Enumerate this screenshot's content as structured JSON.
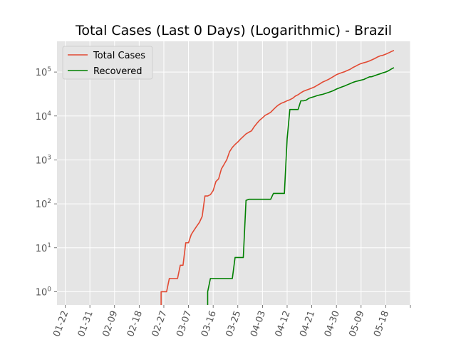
{
  "chart_data": {
    "type": "line",
    "title": "Total Cases (Last 0 Days) (Logarithmic) - Brazil",
    "xlabel": "",
    "ylabel": "",
    "y_scale": "log",
    "ylim": [
      0.5,
      500000
    ],
    "xlim": [
      "2020-01-19",
      "2020-05-27"
    ],
    "grid": true,
    "background": "#e5e5e5",
    "legend": "upper-left",
    "x_ticks": [
      {
        "date": "2020-01-22",
        "label": "01-22"
      },
      {
        "date": "2020-01-31",
        "label": "01-31"
      },
      {
        "date": "2020-02-09",
        "label": "02-09"
      },
      {
        "date": "2020-02-18",
        "label": "02-18"
      },
      {
        "date": "2020-02-27",
        "label": "02-27"
      },
      {
        "date": "2020-03-07",
        "label": "03-07"
      },
      {
        "date": "2020-03-16",
        "label": "03-16"
      },
      {
        "date": "2020-03-25",
        "label": "03-25"
      },
      {
        "date": "2020-04-03",
        "label": "04-03"
      },
      {
        "date": "2020-04-12",
        "label": "04-12"
      },
      {
        "date": "2020-04-21",
        "label": "04-21"
      },
      {
        "date": "2020-04-30",
        "label": "04-30"
      },
      {
        "date": "2020-05-09",
        "label": "05-09"
      },
      {
        "date": "2020-05-18",
        "label": "05-18"
      },
      {
        "date": "2020-05-27",
        "label": ""
      }
    ],
    "y_ticks": [
      {
        "value": 1,
        "base": "10",
        "exp": "0"
      },
      {
        "value": 10,
        "base": "10",
        "exp": "1"
      },
      {
        "value": 100,
        "base": "10",
        "exp": "2"
      },
      {
        "value": 1000,
        "base": "10",
        "exp": "3"
      },
      {
        "value": 10000,
        "base": "10",
        "exp": "4"
      },
      {
        "value": 100000,
        "base": "10",
        "exp": "5"
      }
    ],
    "series": [
      {
        "name": "Total Cases",
        "color": "#e24a33",
        "points": [
          [
            "2020-02-26",
            1
          ],
          [
            "2020-02-27",
            1
          ],
          [
            "2020-02-28",
            1
          ],
          [
            "2020-02-29",
            2
          ],
          [
            "2020-03-01",
            2
          ],
          [
            "2020-03-02",
            2
          ],
          [
            "2020-03-03",
            2
          ],
          [
            "2020-03-04",
            4
          ],
          [
            "2020-03-05",
            4
          ],
          [
            "2020-03-06",
            13
          ],
          [
            "2020-03-07",
            13
          ],
          [
            "2020-03-08",
            20
          ],
          [
            "2020-03-09",
            25
          ],
          [
            "2020-03-10",
            31
          ],
          [
            "2020-03-11",
            38
          ],
          [
            "2020-03-12",
            52
          ],
          [
            "2020-03-13",
            151
          ],
          [
            "2020-03-14",
            151
          ],
          [
            "2020-03-15",
            162
          ],
          [
            "2020-03-16",
            200
          ],
          [
            "2020-03-17",
            321
          ],
          [
            "2020-03-18",
            372
          ],
          [
            "2020-03-19",
            621
          ],
          [
            "2020-03-20",
            793
          ],
          [
            "2020-03-21",
            1021
          ],
          [
            "2020-03-22",
            1546
          ],
          [
            "2020-03-23",
            1924
          ],
          [
            "2020-03-24",
            2247
          ],
          [
            "2020-03-25",
            2554
          ],
          [
            "2020-03-26",
            2985
          ],
          [
            "2020-03-27",
            3417
          ],
          [
            "2020-03-28",
            3904
          ],
          [
            "2020-03-29",
            4256
          ],
          [
            "2020-03-30",
            4579
          ],
          [
            "2020-03-31",
            5717
          ],
          [
            "2020-04-01",
            6836
          ],
          [
            "2020-04-02",
            8044
          ],
          [
            "2020-04-03",
            9056
          ],
          [
            "2020-04-04",
            10360
          ],
          [
            "2020-04-05",
            11130
          ],
          [
            "2020-04-06",
            12161
          ],
          [
            "2020-04-07",
            14034
          ],
          [
            "2020-04-08",
            16170
          ],
          [
            "2020-04-09",
            18092
          ],
          [
            "2020-04-10",
            19638
          ],
          [
            "2020-04-11",
            20727
          ],
          [
            "2020-04-12",
            22192
          ],
          [
            "2020-04-13",
            23430
          ],
          [
            "2020-04-14",
            25262
          ],
          [
            "2020-04-15",
            28320
          ],
          [
            "2020-04-16",
            30425
          ],
          [
            "2020-04-17",
            33682
          ],
          [
            "2020-04-18",
            36658
          ],
          [
            "2020-04-19",
            38654
          ],
          [
            "2020-04-20",
            40743
          ],
          [
            "2020-04-21",
            43079
          ],
          [
            "2020-04-22",
            45757
          ],
          [
            "2020-04-23",
            50036
          ],
          [
            "2020-04-24",
            54043
          ],
          [
            "2020-04-25",
            59324
          ],
          [
            "2020-04-26",
            63100
          ],
          [
            "2020-04-27",
            67446
          ],
          [
            "2020-04-28",
            73235
          ],
          [
            "2020-04-29",
            79685
          ],
          [
            "2020-04-30",
            87187
          ],
          [
            "2020-05-01",
            92202
          ],
          [
            "2020-05-02",
            97100
          ],
          [
            "2020-05-03",
            101826
          ],
          [
            "2020-05-04",
            108620
          ],
          [
            "2020-05-05",
            115455
          ],
          [
            "2020-05-06",
            126611
          ],
          [
            "2020-05-07",
            135773
          ],
          [
            "2020-05-08",
            146894
          ],
          [
            "2020-05-09",
            156061
          ],
          [
            "2020-05-10",
            162699
          ],
          [
            "2020-05-11",
            169594
          ],
          [
            "2020-05-12",
            178214
          ],
          [
            "2020-05-13",
            190137
          ],
          [
            "2020-05-14",
            203165
          ],
          [
            "2020-05-15",
            220291
          ],
          [
            "2020-05-16",
            233511
          ],
          [
            "2020-05-17",
            241080
          ],
          [
            "2020-05-18",
            255368
          ],
          [
            "2020-05-19",
            271885
          ],
          [
            "2020-05-20",
            291579
          ],
          [
            "2020-05-21",
            310087
          ]
        ]
      },
      {
        "name": "Recovered",
        "color": "#008000",
        "points": [
          [
            "2020-03-14",
            1
          ],
          [
            "2020-03-15",
            2
          ],
          [
            "2020-03-16",
            2
          ],
          [
            "2020-03-17",
            2
          ],
          [
            "2020-03-18",
            2
          ],
          [
            "2020-03-19",
            2
          ],
          [
            "2020-03-20",
            2
          ],
          [
            "2020-03-21",
            2
          ],
          [
            "2020-03-22",
            2
          ],
          [
            "2020-03-23",
            2
          ],
          [
            "2020-03-24",
            6
          ],
          [
            "2020-03-25",
            6
          ],
          [
            "2020-03-26",
            6
          ],
          [
            "2020-03-27",
            6
          ],
          [
            "2020-03-28",
            120
          ],
          [
            "2020-03-29",
            127
          ],
          [
            "2020-03-30",
            127
          ],
          [
            "2020-03-31",
            127
          ],
          [
            "2020-04-01",
            127
          ],
          [
            "2020-04-02",
            127
          ],
          [
            "2020-04-03",
            127
          ],
          [
            "2020-04-04",
            127
          ],
          [
            "2020-04-05",
            127
          ],
          [
            "2020-04-06",
            127
          ],
          [
            "2020-04-07",
            173
          ],
          [
            "2020-04-08",
            173
          ],
          [
            "2020-04-09",
            173
          ],
          [
            "2020-04-10",
            173
          ],
          [
            "2020-04-11",
            173
          ],
          [
            "2020-04-12",
            3000
          ],
          [
            "2020-04-13",
            14026
          ],
          [
            "2020-04-14",
            14026
          ],
          [
            "2020-04-15",
            14026
          ],
          [
            "2020-04-16",
            14026
          ],
          [
            "2020-04-17",
            22130
          ],
          [
            "2020-04-18",
            22130
          ],
          [
            "2020-04-19",
            22991
          ],
          [
            "2020-04-20",
            25318
          ],
          [
            "2020-04-21",
            26573
          ],
          [
            "2020-04-22",
            27655
          ],
          [
            "2020-04-23",
            29160
          ],
          [
            "2020-04-24",
            30152
          ],
          [
            "2020-04-25",
            31142
          ],
          [
            "2020-04-26",
            32544
          ],
          [
            "2020-04-27",
            34132
          ],
          [
            "2020-04-28",
            35935
          ],
          [
            "2020-04-29",
            38039
          ],
          [
            "2020-04-30",
            40937
          ],
          [
            "2020-05-01",
            43358
          ],
          [
            "2020-05-02",
            45815
          ],
          [
            "2020-05-03",
            48221
          ],
          [
            "2020-05-04",
            51370
          ],
          [
            "2020-05-05",
            54512
          ],
          [
            "2020-05-06",
            57994
          ],
          [
            "2020-05-07",
            60931
          ],
          [
            "2020-05-08",
            63082
          ],
          [
            "2020-05-09",
            65540
          ],
          [
            "2020-05-10",
            67796
          ],
          [
            "2020-05-11",
            72597
          ],
          [
            "2020-05-12",
            77493
          ],
          [
            "2020-05-13",
            78646
          ],
          [
            "2020-05-14",
            82858
          ],
          [
            "2020-05-15",
            87451
          ],
          [
            "2020-05-16",
            91262
          ],
          [
            "2020-05-17",
            96051
          ],
          [
            "2020-05-18",
            100459
          ],
          [
            "2020-05-19",
            106794
          ],
          [
            "2020-05-20",
            116683
          ],
          [
            "2020-05-21",
            125908
          ]
        ]
      }
    ]
  }
}
